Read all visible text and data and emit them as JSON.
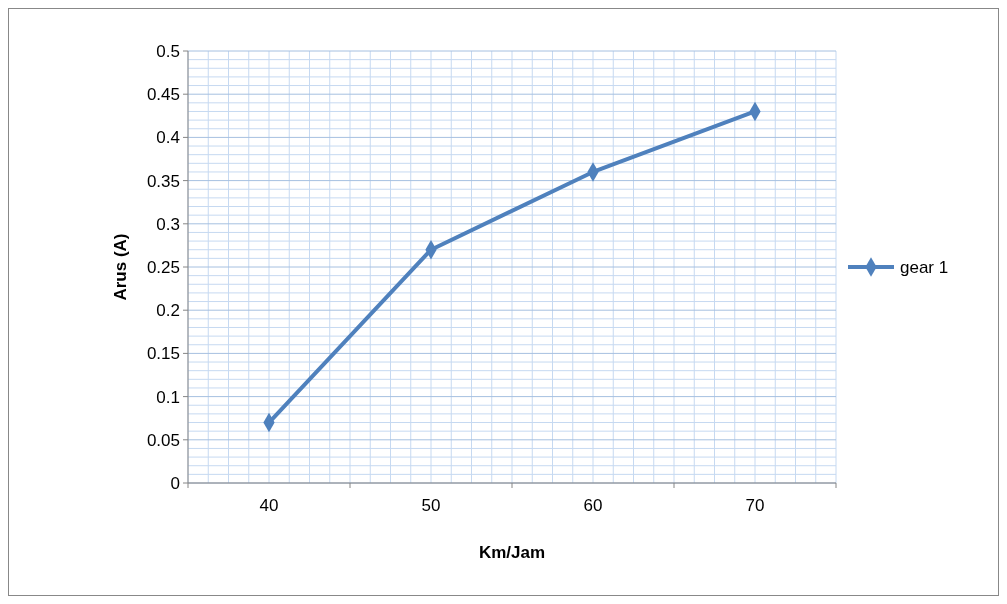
{
  "chart_data": {
    "type": "line",
    "xlabel": "Km/Jam",
    "ylabel": "Arus (A)",
    "categories": [
      "40",
      "50",
      "60",
      "70"
    ],
    "series": [
      {
        "name": "gear 1",
        "color": "#4f81bd",
        "values": [
          0.07,
          0.27,
          0.36,
          0.43
        ]
      }
    ],
    "ylim": [
      0,
      0.5
    ],
    "yticks": [
      0,
      0.05,
      0.1,
      0.15,
      0.2,
      0.25,
      0.3,
      0.35,
      0.4,
      0.45,
      0.5
    ],
    "grid": true,
    "legend": "right",
    "marker": "diamond"
  }
}
